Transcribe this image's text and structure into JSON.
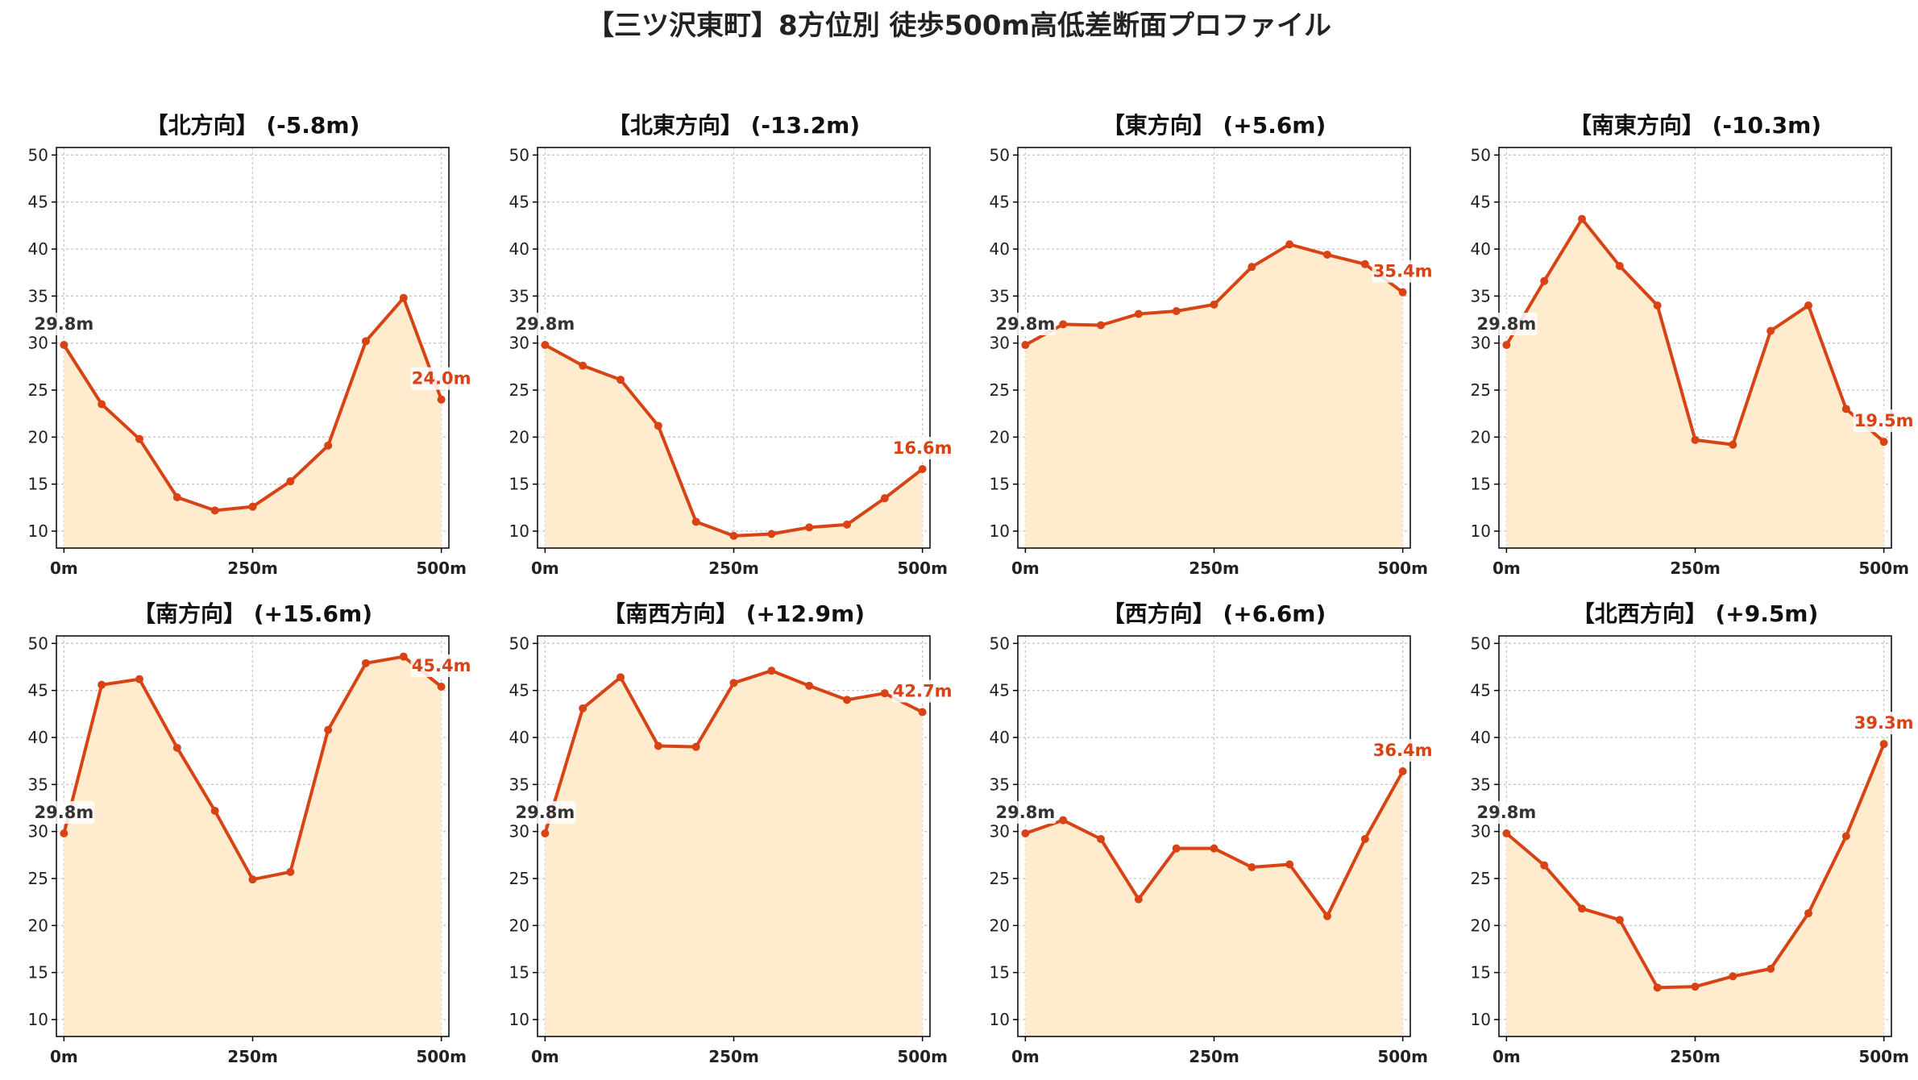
{
  "title": "【三ツ沢東町】8方位別 徒歩500m高低差断面プロファイル",
  "colors": {
    "line": "#d84315",
    "fill": "#ffebcd",
    "grid": "#c8c8c8",
    "axis": "#000000",
    "start_text": "#333333",
    "end_text": "#d84315"
  },
  "chart_data": [
    {
      "type": "area",
      "title": "【北方向】 (-5.8m)",
      "x": [
        0,
        50,
        100,
        150,
        200,
        250,
        300,
        350,
        400,
        450,
        500
      ],
      "values": [
        29.8,
        23.5,
        19.8,
        13.6,
        12.2,
        12.6,
        15.3,
        19.1,
        30.2,
        34.8,
        24.0
      ],
      "start_label": "29.8m",
      "end_label": "24.0m",
      "xticks": [
        0,
        250,
        500
      ],
      "xtick_labels": [
        "0m",
        "250m",
        "500m"
      ],
      "yticks": [
        10,
        15,
        20,
        25,
        30,
        35,
        40,
        45,
        50
      ],
      "xlim": [
        -10,
        510
      ],
      "ylim": [
        8.2,
        50.8
      ],
      "grid": true
    },
    {
      "type": "area",
      "title": "【北東方向】 (-13.2m)",
      "x": [
        0,
        50,
        100,
        150,
        200,
        250,
        300,
        350,
        400,
        450,
        500
      ],
      "values": [
        29.8,
        27.6,
        26.1,
        21.2,
        11.0,
        9.5,
        9.7,
        10.4,
        10.7,
        13.5,
        16.6
      ],
      "start_label": "29.8m",
      "end_label": "16.6m",
      "xticks": [
        0,
        250,
        500
      ],
      "xtick_labels": [
        "0m",
        "250m",
        "500m"
      ],
      "yticks": [
        10,
        15,
        20,
        25,
        30,
        35,
        40,
        45,
        50
      ],
      "xlim": [
        -10,
        510
      ],
      "ylim": [
        8.2,
        50.8
      ],
      "grid": true
    },
    {
      "type": "area",
      "title": "【東方向】 (+5.6m)",
      "x": [
        0,
        50,
        100,
        150,
        200,
        250,
        300,
        350,
        400,
        450,
        500
      ],
      "values": [
        29.8,
        32.0,
        31.9,
        33.1,
        33.4,
        34.1,
        38.1,
        40.5,
        39.4,
        38.4,
        35.4
      ],
      "start_label": "29.8m",
      "end_label": "35.4m",
      "xticks": [
        0,
        250,
        500
      ],
      "xtick_labels": [
        "0m",
        "250m",
        "500m"
      ],
      "yticks": [
        10,
        15,
        20,
        25,
        30,
        35,
        40,
        45,
        50
      ],
      "xlim": [
        -10,
        510
      ],
      "ylim": [
        8.2,
        50.8
      ],
      "grid": true
    },
    {
      "type": "area",
      "title": "【南東方向】 (-10.3m)",
      "x": [
        0,
        50,
        100,
        150,
        200,
        250,
        300,
        350,
        400,
        450,
        500
      ],
      "values": [
        29.8,
        36.6,
        43.2,
        38.2,
        34.0,
        19.7,
        19.2,
        31.3,
        34.0,
        23.0,
        19.5
      ],
      "start_label": "29.8m",
      "end_label": "19.5m",
      "xticks": [
        0,
        250,
        500
      ],
      "xtick_labels": [
        "0m",
        "250m",
        "500m"
      ],
      "yticks": [
        10,
        15,
        20,
        25,
        30,
        35,
        40,
        45,
        50
      ],
      "xlim": [
        -10,
        510
      ],
      "ylim": [
        8.2,
        50.8
      ],
      "grid": true
    },
    {
      "type": "area",
      "title": "【南方向】 (+15.6m)",
      "x": [
        0,
        50,
        100,
        150,
        200,
        250,
        300,
        350,
        400,
        450,
        500
      ],
      "values": [
        29.8,
        45.6,
        46.2,
        38.9,
        32.2,
        24.9,
        25.7,
        40.8,
        47.9,
        48.6,
        45.4
      ],
      "start_label": "29.8m",
      "end_label": "45.4m",
      "xticks": [
        0,
        250,
        500
      ],
      "xtick_labels": [
        "0m",
        "250m",
        "500m"
      ],
      "yticks": [
        10,
        15,
        20,
        25,
        30,
        35,
        40,
        45,
        50
      ],
      "xlim": [
        -10,
        510
      ],
      "ylim": [
        8.2,
        50.8
      ],
      "grid": true
    },
    {
      "type": "area",
      "title": "【南西方向】 (+12.9m)",
      "x": [
        0,
        50,
        100,
        150,
        200,
        250,
        300,
        350,
        400,
        450,
        500
      ],
      "values": [
        29.8,
        43.1,
        46.4,
        39.1,
        39.0,
        45.8,
        47.1,
        45.5,
        44.0,
        44.7,
        42.7
      ],
      "start_label": "29.8m",
      "end_label": "42.7m",
      "xticks": [
        0,
        250,
        500
      ],
      "xtick_labels": [
        "0m",
        "250m",
        "500m"
      ],
      "yticks": [
        10,
        15,
        20,
        25,
        30,
        35,
        40,
        45,
        50
      ],
      "xlim": [
        -10,
        510
      ],
      "ylim": [
        8.2,
        50.8
      ],
      "grid": true
    },
    {
      "type": "area",
      "title": "【西方向】 (+6.6m)",
      "x": [
        0,
        50,
        100,
        150,
        200,
        250,
        300,
        350,
        400,
        450,
        500
      ],
      "values": [
        29.8,
        31.2,
        29.2,
        22.8,
        28.2,
        28.2,
        26.2,
        26.5,
        21.0,
        29.2,
        36.4
      ],
      "start_label": "29.8m",
      "end_label": "36.4m",
      "xticks": [
        0,
        250,
        500
      ],
      "xtick_labels": [
        "0m",
        "250m",
        "500m"
      ],
      "yticks": [
        10,
        15,
        20,
        25,
        30,
        35,
        40,
        45,
        50
      ],
      "xlim": [
        -10,
        510
      ],
      "ylim": [
        8.2,
        50.8
      ],
      "grid": true
    },
    {
      "type": "area",
      "title": "【北西方向】 (+9.5m)",
      "x": [
        0,
        50,
        100,
        150,
        200,
        250,
        300,
        350,
        400,
        450,
        500
      ],
      "values": [
        29.8,
        26.4,
        21.8,
        20.6,
        13.4,
        13.5,
        14.6,
        15.4,
        21.3,
        29.5,
        39.3
      ],
      "start_label": "29.8m",
      "end_label": "39.3m",
      "xticks": [
        0,
        250,
        500
      ],
      "xtick_labels": [
        "0m",
        "250m",
        "500m"
      ],
      "yticks": [
        10,
        15,
        20,
        25,
        30,
        35,
        40,
        45,
        50
      ],
      "xlim": [
        -10,
        510
      ],
      "ylim": [
        8.2,
        50.8
      ],
      "grid": true
    }
  ]
}
